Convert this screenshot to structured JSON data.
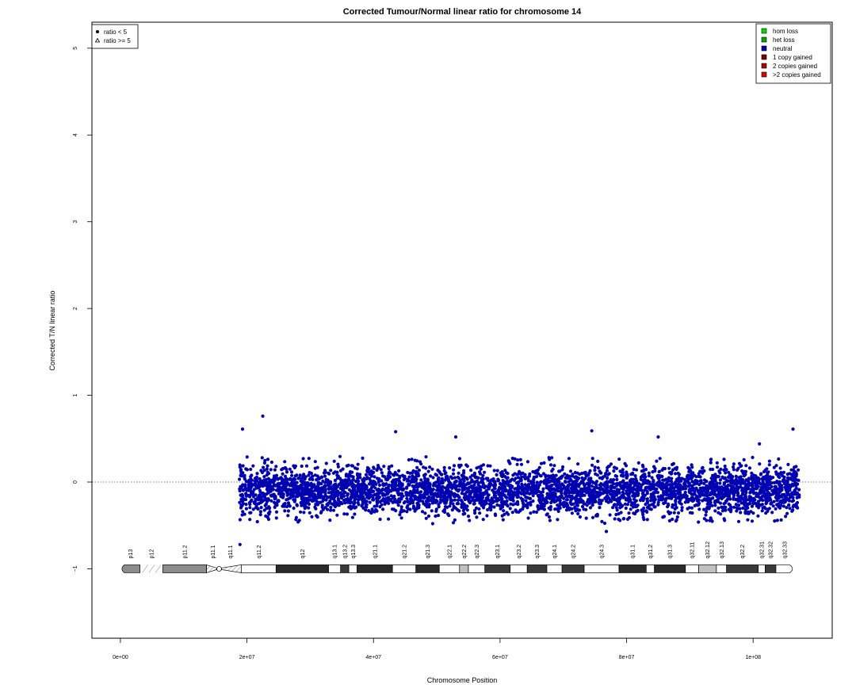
{
  "chart_data": {
    "type": "scatter",
    "title": "Corrected Tumour/Normal linear ratio for chromosome  14",
    "xlabel": "Chromosome Position",
    "ylabel": "Corrected T/N linear ratio",
    "xlim": [
      -4500000,
      112500000
    ],
    "ylim": [
      -1.8,
      5.3
    ],
    "x_ticks": [
      {
        "value": 0,
        "label": "0e+00"
      },
      {
        "value": 20000000,
        "label": "2e+07"
      },
      {
        "value": 40000000,
        "label": "4e+07"
      },
      {
        "value": 60000000,
        "label": "6e+07"
      },
      {
        "value": 80000000,
        "label": "8e+07"
      },
      {
        "value": 100000000,
        "label": "1e+08"
      }
    ],
    "y_ticks": [
      {
        "value": -1,
        "label": "−1"
      },
      {
        "value": 0,
        "label": "0"
      },
      {
        "value": 1,
        "label": "1"
      },
      {
        "value": 2,
        "label": "2"
      },
      {
        "value": 3,
        "label": "3"
      },
      {
        "value": 4,
        "label": "4"
      },
      {
        "value": 5,
        "label": "5"
      }
    ],
    "reference_line": {
      "y": 0,
      "style": "dotted"
    },
    "series": [
      {
        "name": "neutral",
        "color": "#0000b0",
        "marker": "circle",
        "x_range": [
          18800000,
          107300000
        ],
        "y_center": -0.1,
        "y_spread": 0.22,
        "points": [
          {
            "x": 18900000,
            "y": -0.72
          },
          {
            "x": 22500000,
            "y": 0.76
          },
          {
            "x": 43500000,
            "y": 0.58
          },
          {
            "x": 74500000,
            "y": 0.59
          },
          {
            "x": 101000000,
            "y": 0.44
          },
          {
            "x": 106300000,
            "y": 0.61
          },
          {
            "x": 76800000,
            "y": -0.57
          },
          {
            "x": 19300000,
            "y": 0.61
          },
          {
            "x": 53000000,
            "y": 0.52
          },
          {
            "x": 85000000,
            "y": 0.52
          }
        ]
      }
    ],
    "legend_markers": {
      "position": "top-left",
      "entries": [
        {
          "label": "ratio < 5",
          "symbol": "circle"
        },
        {
          "label": "ratio >= 5",
          "symbol": "triangle"
        }
      ]
    },
    "legend_states": {
      "position": "top-right",
      "entries": [
        {
          "label": "hom loss",
          "color": "#00dd00"
        },
        {
          "label": "het loss",
          "color": "#00aa00"
        },
        {
          "label": "neutral",
          "color": "#0000b0"
        },
        {
          "label": "1 copy gained",
          "color": "#800000"
        },
        {
          "label": "2 copies gained",
          "color": "#b00000"
        },
        {
          "label": ">2 copies gained",
          "color": "#e00000"
        }
      ]
    },
    "ideogram": {
      "y": -1,
      "bands": [
        {
          "name": "p13",
          "start": 0,
          "end": 3100000,
          "stain": "gvar"
        },
        {
          "name": "p12",
          "start": 3100000,
          "end": 6700000,
          "stain": "stalk"
        },
        {
          "name": "p11.2",
          "start": 6700000,
          "end": 13600000,
          "stain": "gvar"
        },
        {
          "name": "p11.1",
          "start": 13600000,
          "end": 15600000,
          "stain": "acen"
        },
        {
          "name": "q11.1",
          "start": 15600000,
          "end": 19100000,
          "stain": "acen"
        },
        {
          "name": "q11.2",
          "start": 19100000,
          "end": 24600000,
          "stain": "gneg"
        },
        {
          "name": "q12",
          "start": 24600000,
          "end": 32900000,
          "stain": "gpos100"
        },
        {
          "name": "q13.1",
          "start": 32900000,
          "end": 34800000,
          "stain": "gneg"
        },
        {
          "name": "q13.2",
          "start": 34800000,
          "end": 36100000,
          "stain": "gpos50"
        },
        {
          "name": "q13.3",
          "start": 36100000,
          "end": 37400000,
          "stain": "gneg"
        },
        {
          "name": "q21.1",
          "start": 37400000,
          "end": 43000000,
          "stain": "gpos100"
        },
        {
          "name": "q21.2",
          "start": 43000000,
          "end": 46700000,
          "stain": "gneg"
        },
        {
          "name": "q21.3",
          "start": 46700000,
          "end": 50400000,
          "stain": "gpos100"
        },
        {
          "name": "q22.1",
          "start": 50400000,
          "end": 53600000,
          "stain": "gneg"
        },
        {
          "name": "q22.2",
          "start": 53600000,
          "end": 55000000,
          "stain": "gpos25"
        },
        {
          "name": "q22.3",
          "start": 55000000,
          "end": 57600000,
          "stain": "gneg"
        },
        {
          "name": "q23.1",
          "start": 57600000,
          "end": 61600000,
          "stain": "gpos75"
        },
        {
          "name": "q23.2",
          "start": 61600000,
          "end": 64300000,
          "stain": "gneg"
        },
        {
          "name": "q23.3",
          "start": 64300000,
          "end": 67400000,
          "stain": "gpos50"
        },
        {
          "name": "q24.1",
          "start": 67400000,
          "end": 69800000,
          "stain": "gneg"
        },
        {
          "name": "q24.2",
          "start": 69800000,
          "end": 73300000,
          "stain": "gpos50"
        },
        {
          "name": "q24.3",
          "start": 73300000,
          "end": 78800000,
          "stain": "gneg"
        },
        {
          "name": "q31.1",
          "start": 78800000,
          "end": 83100000,
          "stain": "gpos100"
        },
        {
          "name": "q31.2",
          "start": 83100000,
          "end": 84400000,
          "stain": "gneg"
        },
        {
          "name": "q31.3",
          "start": 84400000,
          "end": 89300000,
          "stain": "gpos100"
        },
        {
          "name": "q32.11",
          "start": 89300000,
          "end": 91400000,
          "stain": "gneg"
        },
        {
          "name": "q32.12",
          "start": 91400000,
          "end": 94200000,
          "stain": "gpos25"
        },
        {
          "name": "q32.13",
          "start": 94200000,
          "end": 95800000,
          "stain": "gneg"
        },
        {
          "name": "q32.2",
          "start": 95800000,
          "end": 100800000,
          "stain": "gpos50"
        },
        {
          "name": "q32.31",
          "start": 100800000,
          "end": 101900000,
          "stain": "gneg"
        },
        {
          "name": "q32.32",
          "start": 101900000,
          "end": 103600000,
          "stain": "gpos50"
        },
        {
          "name": "q32.33",
          "start": 103600000,
          "end": 106400000,
          "stain": "gneg"
        }
      ]
    }
  }
}
